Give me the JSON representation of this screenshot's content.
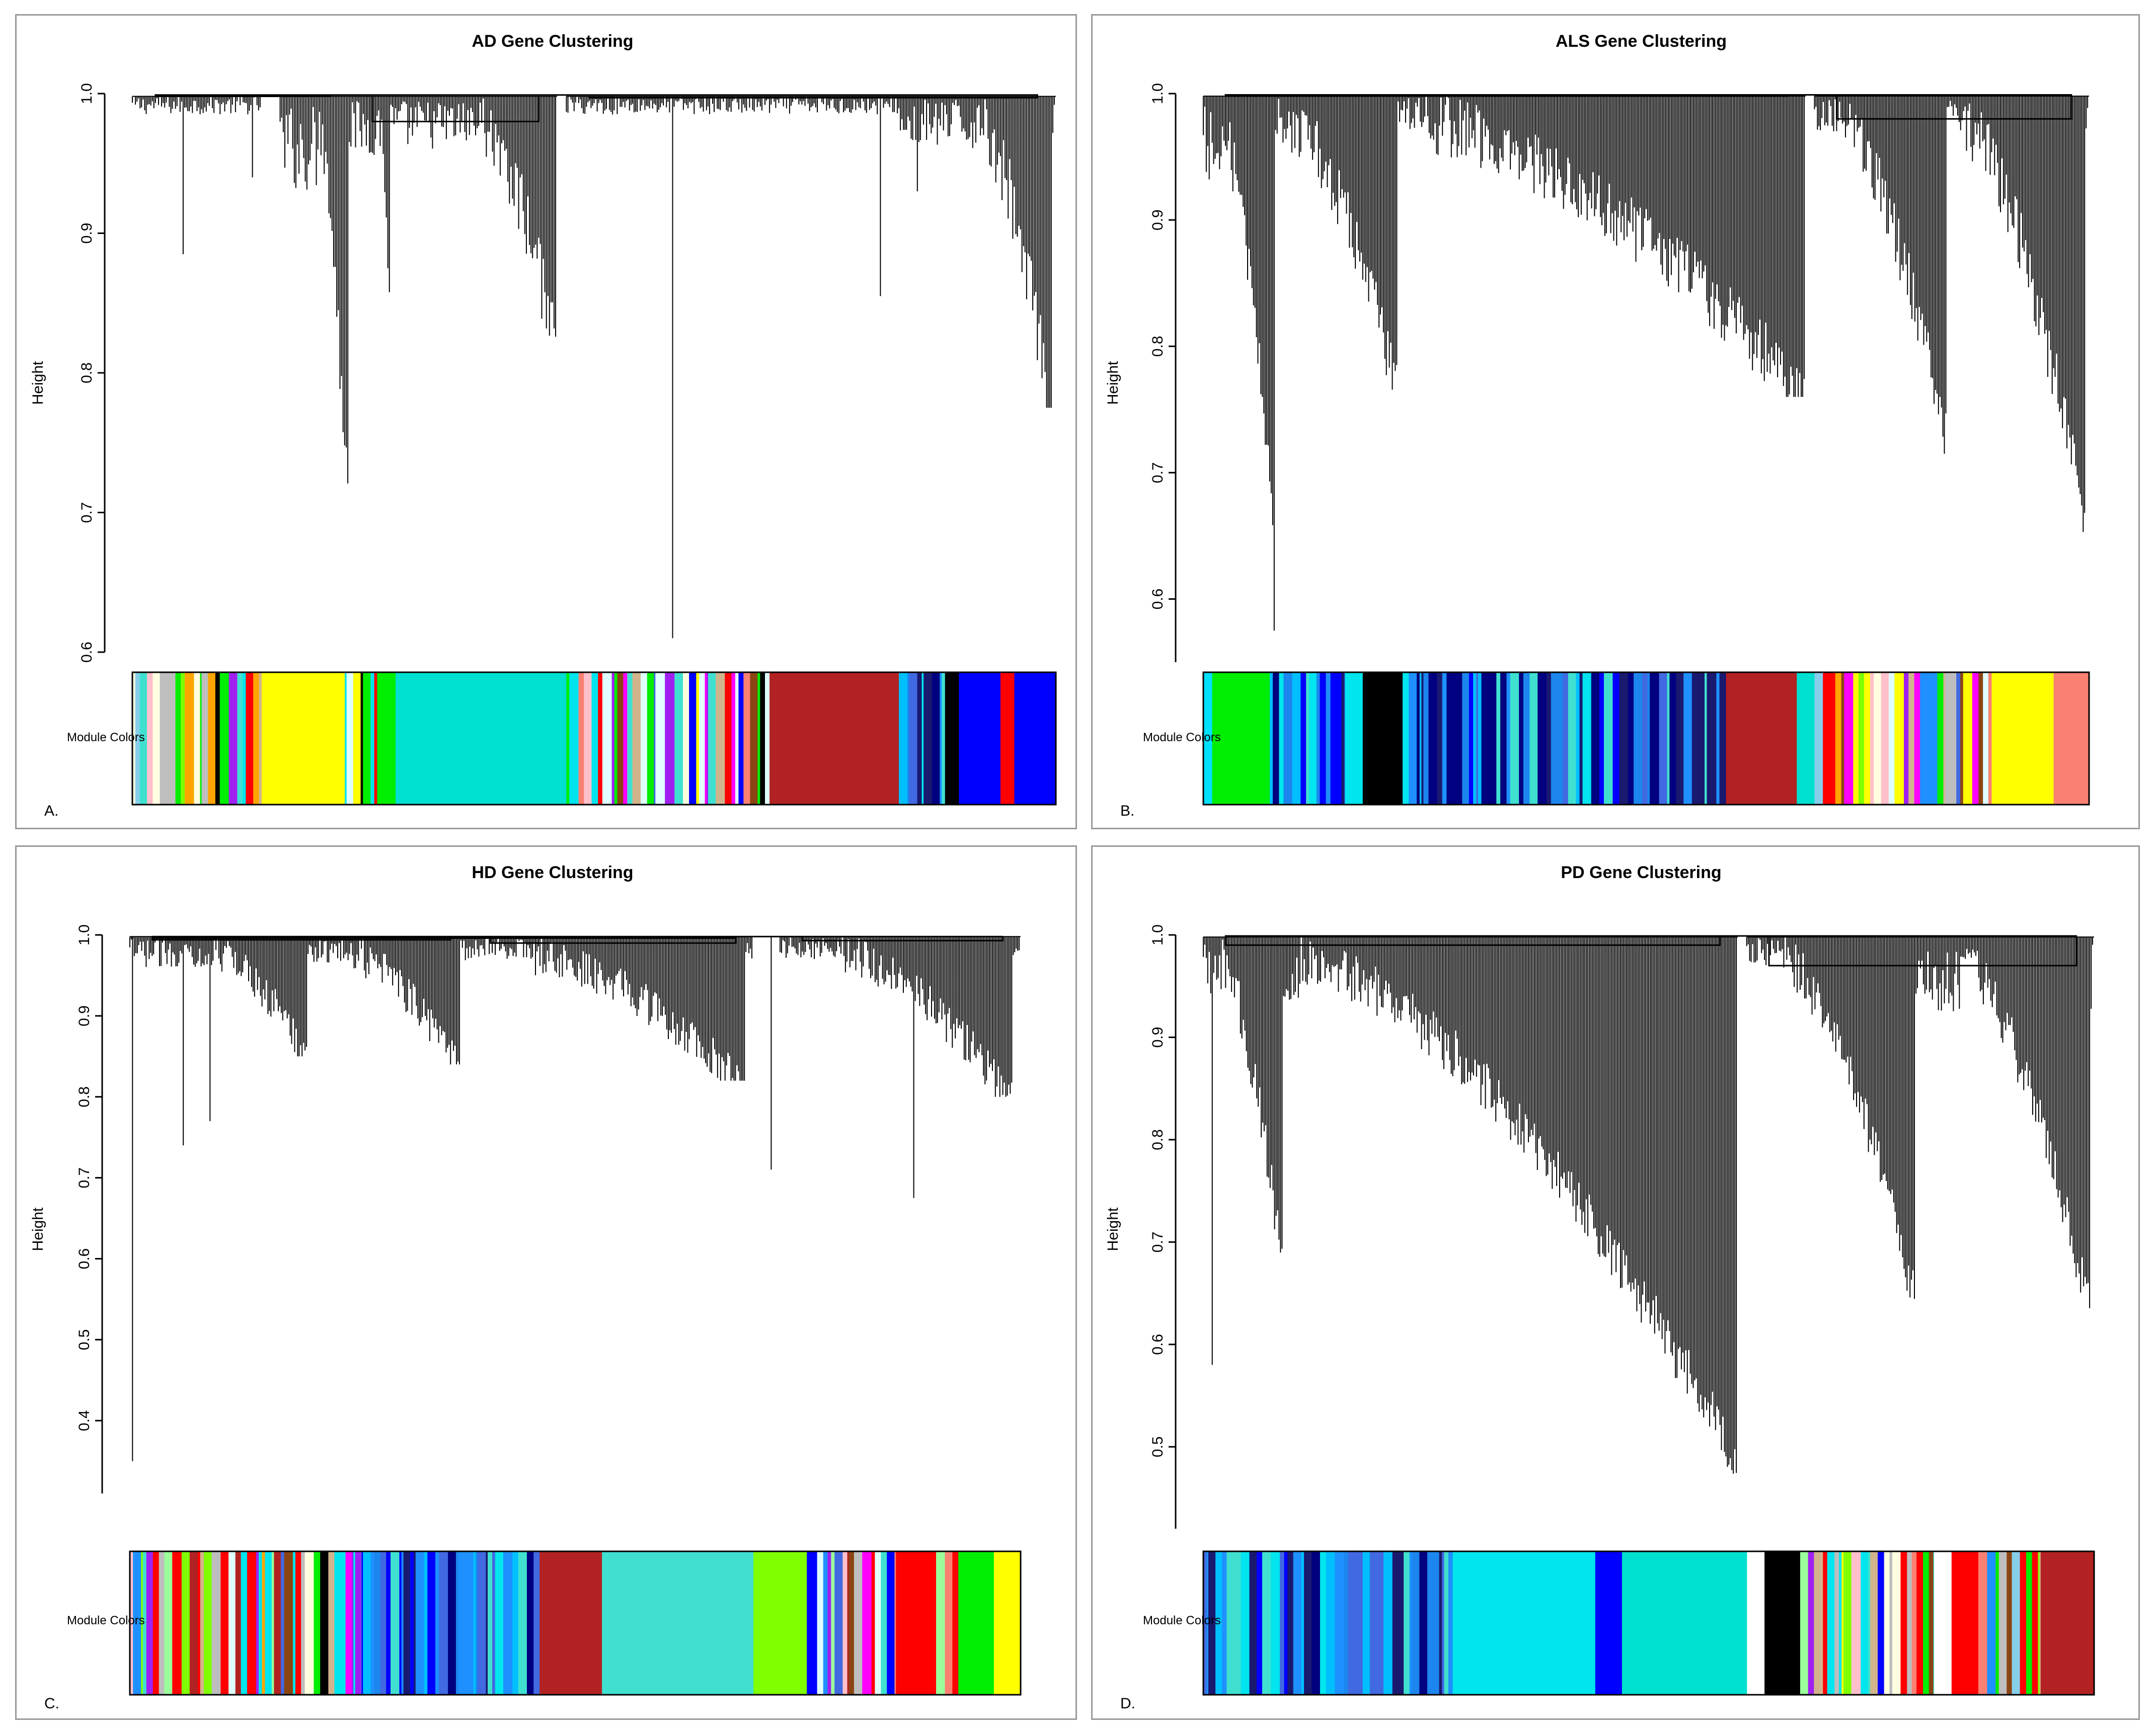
{
  "chart_data": [
    {
      "type": "dendrogram",
      "panel_letter": "A.",
      "title": "AD Gene Clustering",
      "ylabel": "Height",
      "color_row_label": "Module Colors",
      "ylim": [
        0.6,
        1.0
      ],
      "yticks": [
        "0.6",
        "0.7",
        "0.8",
        "0.9",
        "1.0"
      ],
      "clusters": [
        {
          "x": [
            0.0,
            0.14
          ],
          "min": 0.985,
          "dips": [
            [
              0.055,
              0.885
            ],
            [
              0.13,
              0.94
            ]
          ]
        },
        {
          "x": [
            0.16,
            0.235
          ],
          "min": 0.93,
          "tail": [
            0.2,
            0.235,
            0.675
          ]
        },
        {
          "x": [
            0.235,
            0.28
          ],
          "min": 0.955,
          "tail": [
            0.27,
            0.285,
            0.63
          ]
        },
        {
          "x": [
            0.28,
            0.46
          ],
          "min": 0.96,
          "tail": [
            0.38,
            0.46,
            0.82
          ]
        },
        {
          "x": [
            0.47,
            0.83
          ],
          "min": 0.985,
          "dips": [
            [
              0.585,
              0.61
            ],
            [
              0.81,
              0.855
            ],
            [
              0.85,
              0.93
            ]
          ]
        },
        {
          "x": [
            0.83,
            1.0
          ],
          "min": 0.96,
          "tail": [
            0.92,
            0.995,
            0.775
          ]
        }
      ],
      "merges": [
        [
          0.0,
          0.235,
          0.998
        ],
        [
          0.235,
          0.46,
          0.98
        ],
        [
          0.47,
          1.0,
          0.997
        ],
        [
          0.0,
          1.0,
          0.999
        ]
      ],
      "module_blocks": [
        {
          "color": "mixed",
          "span": [
            0.0,
            0.14
          ]
        },
        {
          "color": "#ffff00",
          "span": [
            0.14,
            0.23
          ]
        },
        {
          "color": "mixed",
          "span": [
            0.23,
            0.265
          ]
        },
        {
          "color": "#00ee00",
          "span": [
            0.265,
            0.285
          ]
        },
        {
          "color": "#00e0d0",
          "span": [
            0.285,
            0.47
          ]
        },
        {
          "color": "mixed",
          "span": [
            0.47,
            0.69
          ]
        },
        {
          "color": "#b22222",
          "span": [
            0.69,
            0.83
          ]
        },
        {
          "color": "mixed-blue",
          "span": [
            0.83,
            0.88
          ]
        },
        {
          "color": "#000000",
          "span": [
            0.88,
            0.895
          ]
        },
        {
          "color": "#0000ff",
          "span": [
            0.895,
            0.94
          ]
        },
        {
          "color": "#ff0000",
          "span": [
            0.94,
            0.955
          ]
        },
        {
          "color": "#0000ff",
          "span": [
            0.955,
            1.0
          ]
        }
      ]
    },
    {
      "type": "dendrogram",
      "panel_letter": "B.",
      "title": "ALS Gene Clustering",
      "ylabel": "Height",
      "color_row_label": "Module Colors",
      "ylim": [
        0.55,
        1.0
      ],
      "yticks": [
        "0.6",
        "0.7",
        "0.8",
        "0.9",
        "1.0"
      ],
      "clusters": [
        {
          "x": [
            0.0,
            0.08
          ],
          "min": 0.92,
          "tail": [
            0.02,
            0.08,
            0.65
          ],
          "dips": [
            [
              0.08,
              0.575
            ]
          ]
        },
        {
          "x": [
            0.08,
            0.22
          ],
          "min": 0.96,
          "tail": [
            0.1,
            0.22,
            0.765
          ]
        },
        {
          "x": [
            0.22,
            0.68
          ],
          "min": 0.97,
          "tail": [
            0.25,
            0.68,
            0.76
          ]
        },
        {
          "x": [
            0.69,
            0.84
          ],
          "min": 0.97,
          "tail": [
            0.72,
            0.84,
            0.715
          ]
        },
        {
          "x": [
            0.84,
            1.0
          ],
          "min": 0.97,
          "tail": [
            0.86,
            0.995,
            0.65
          ]
        }
      ],
      "merges": [
        [
          0.0,
          0.68,
          0.998
        ],
        [
          0.69,
          1.0,
          0.98
        ],
        [
          0.0,
          1.0,
          0.999
        ]
      ],
      "module_blocks": [
        {
          "color": "#00e0ff",
          "span": [
            0.0,
            0.01
          ]
        },
        {
          "color": "#00ee00",
          "span": [
            0.01,
            0.075
          ]
        },
        {
          "color": "mixed-blue",
          "span": [
            0.075,
            0.16
          ]
        },
        {
          "color": "#00e5ee",
          "span": [
            0.16,
            0.18
          ]
        },
        {
          "color": "#000000",
          "span": [
            0.18,
            0.225
          ]
        },
        {
          "color": "mixed-blue",
          "span": [
            0.225,
            0.59
          ]
        },
        {
          "color": "#b22222",
          "span": [
            0.59,
            0.67
          ]
        },
        {
          "color": "#00e0d0",
          "span": [
            0.67,
            0.69
          ]
        },
        {
          "color": "mixed",
          "span": [
            0.69,
            0.89
          ]
        },
        {
          "color": "#ffff00",
          "span": [
            0.89,
            0.96
          ]
        },
        {
          "color": "#fa8072",
          "span": [
            0.96,
            1.0
          ]
        }
      ]
    },
    {
      "type": "dendrogram",
      "panel_letter": "C.",
      "title": "HD Gene Clustering",
      "ylabel": "Height",
      "color_row_label": "Module Colors",
      "ylim": [
        0.31,
        1.0
      ],
      "yticks": [
        "0.4",
        "0.5",
        "0.6",
        "0.7",
        "0.8",
        "0.9",
        "1.0"
      ],
      "clusters": [
        {
          "x": [
            0.0,
            0.2
          ],
          "min": 0.96,
          "tail": [
            0.1,
            0.2,
            0.85
          ],
          "dips": [
            [
              0.003,
              0.35
            ],
            [
              0.06,
              0.74
            ],
            [
              0.09,
              0.77
            ]
          ]
        },
        {
          "x": [
            0.2,
            0.38
          ],
          "min": 0.965,
          "tail": [
            0.25,
            0.37,
            0.84
          ]
        },
        {
          "x": [
            0.38,
            0.7
          ],
          "min": 0.97,
          "tail": [
            0.45,
            0.69,
            0.82
          ],
          "dips": [
            [
              0.72,
              0.71
            ]
          ]
        },
        {
          "x": [
            0.73,
            1.0
          ],
          "min": 0.97,
          "tail": [
            0.8,
            0.99,
            0.8
          ],
          "dips": [
            [
              0.88,
              0.675
            ]
          ]
        }
      ],
      "merges": [
        [
          0.0,
          0.38,
          0.994
        ],
        [
          0.38,
          0.7,
          0.99
        ],
        [
          0.0,
          0.7,
          0.996
        ],
        [
          0.73,
          1.0,
          0.993
        ],
        [
          0.0,
          1.0,
          0.998
        ]
      ],
      "module_blocks": [
        {
          "color": "mixed",
          "span": [
            0.0,
            0.26
          ]
        },
        {
          "color": "mixed-blue",
          "span": [
            0.26,
            0.46
          ]
        },
        {
          "color": "#b22222",
          "span": [
            0.46,
            0.53
          ]
        },
        {
          "color": "#40e0d0",
          "span": [
            0.53,
            0.7
          ]
        },
        {
          "color": "#7fff00",
          "span": [
            0.7,
            0.76
          ]
        },
        {
          "color": "mixed",
          "span": [
            0.76,
            0.86
          ]
        },
        {
          "color": "#ff0000",
          "span": [
            0.86,
            0.9
          ]
        },
        {
          "color": "mixed",
          "span": [
            0.9,
            0.93
          ]
        },
        {
          "color": "#00ee00",
          "span": [
            0.93,
            0.97
          ]
        },
        {
          "color": "#ffff00",
          "span": [
            0.97,
            1.0
          ]
        }
      ]
    },
    {
      "type": "dendrogram",
      "panel_letter": "D.",
      "title": "PD Gene Clustering",
      "ylabel": "Height",
      "color_row_label": "Module Colors",
      "ylim": [
        0.42,
        1.0
      ],
      "yticks": [
        "0.5",
        "0.6",
        "0.7",
        "0.8",
        "0.9",
        "1.0"
      ],
      "clusters": [
        {
          "x": [
            0.0,
            0.09
          ],
          "min": 0.94,
          "tail": [
            0.02,
            0.09,
            0.65
          ],
          "dips": [
            [
              0.01,
              0.58
            ]
          ]
        },
        {
          "x": [
            0.09,
            0.6
          ],
          "min": 0.93,
          "tail": [
            0.11,
            0.6,
            0.455
          ]
        },
        {
          "x": [
            0.61,
            0.8
          ],
          "min": 0.97,
          "tail": [
            0.65,
            0.8,
            0.63
          ]
        },
        {
          "x": [
            0.8,
            1.0
          ],
          "min": 0.92,
          "tail": [
            0.85,
            0.995,
            0.615
          ]
        }
      ],
      "merges": [
        [
          0.0,
          0.6,
          0.99
        ],
        [
          0.61,
          1.0,
          0.97
        ],
        [
          0.0,
          1.0,
          0.999
        ]
      ],
      "module_blocks": [
        {
          "color": "mixed-blue",
          "span": [
            0.0,
            0.11
          ]
        },
        {
          "color": "mixed-blue",
          "span": [
            0.11,
            0.28
          ]
        },
        {
          "color": "#00e5ee",
          "span": [
            0.28,
            0.44
          ]
        },
        {
          "color": "#0000ff",
          "span": [
            0.44,
            0.47
          ]
        },
        {
          "color": "#00e0d0",
          "span": [
            0.47,
            0.61
          ]
        },
        {
          "color": "#000000",
          "span": [
            0.63,
            0.67
          ]
        },
        {
          "color": "mixed",
          "span": [
            0.67,
            0.82
          ]
        },
        {
          "color": "#ff0000",
          "span": [
            0.84,
            0.87
          ]
        },
        {
          "color": "mixed",
          "span": [
            0.87,
            0.94
          ]
        },
        {
          "color": "#b22222",
          "span": [
            0.94,
            1.0
          ]
        }
      ]
    }
  ]
}
